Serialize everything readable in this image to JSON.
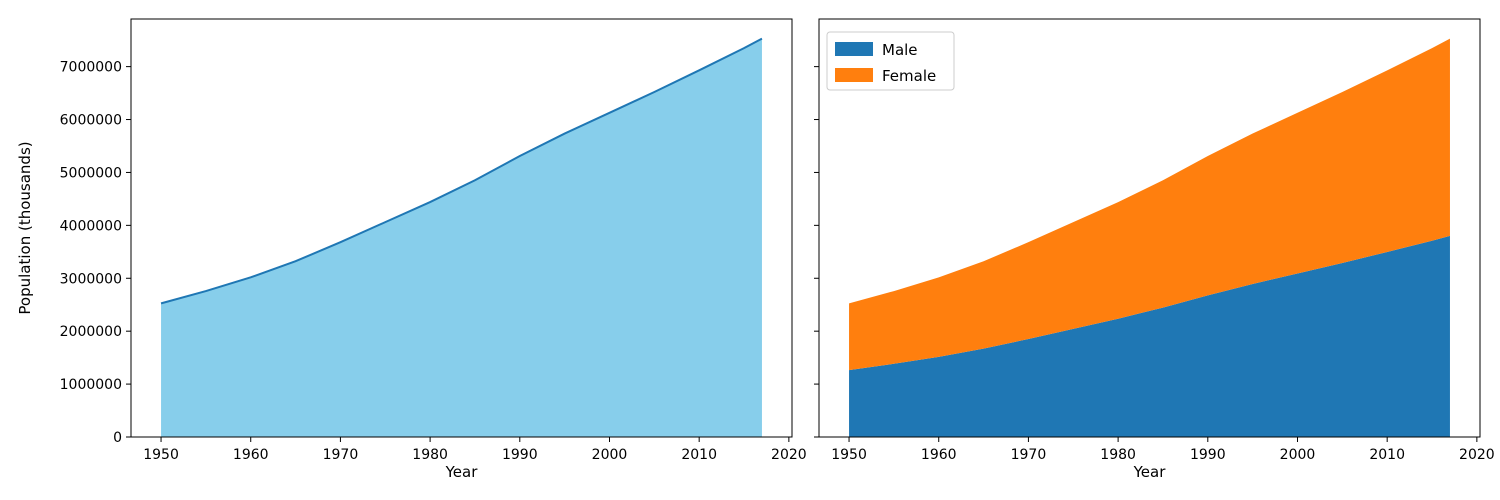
{
  "chart_data": [
    {
      "type": "area",
      "title": "",
      "xlabel": "Year",
      "ylabel": "Population (thousands)",
      "xlim": [
        1946.65,
        2020.35
      ],
      "ylim": [
        0,
        7900000
      ],
      "xticks": [
        1950,
        1960,
        1970,
        1980,
        1990,
        2000,
        2010,
        2020
      ],
      "yticks": [
        0,
        1000000,
        2000000,
        3000000,
        4000000,
        5000000,
        6000000,
        7000000
      ],
      "fill_color": "#87ceeb",
      "line_color": "#1f77b4",
      "x": [
        1950,
        1955,
        1960,
        1965,
        1970,
        1975,
        1980,
        1985,
        1990,
        1995,
        2000,
        2005,
        2010,
        2015,
        2017
      ],
      "values": [
        2525000,
        2758000,
        3018000,
        3322000,
        3682000,
        4061000,
        4440000,
        4853000,
        5310000,
        5735000,
        6127000,
        6520000,
        6930000,
        7349000,
        7530000
      ]
    },
    {
      "type": "area",
      "stacked": true,
      "title": "",
      "xlabel": "Year",
      "ylabel": "",
      "xlim": [
        1946.65,
        2020.35
      ],
      "ylim": [
        0,
        7900000
      ],
      "xticks": [
        1950,
        1960,
        1970,
        1980,
        1990,
        2000,
        2010,
        2020
      ],
      "legend_position": "top-left",
      "x": [
        1950,
        1955,
        1960,
        1965,
        1970,
        1975,
        1980,
        1985,
        1990,
        1995,
        2000,
        2005,
        2010,
        2015,
        2017
      ],
      "series": [
        {
          "name": "Male",
          "color": "#1f77b4",
          "values": [
            1265000,
            1384000,
            1515000,
            1670000,
            1852000,
            2044000,
            2236000,
            2446000,
            2677000,
            2892000,
            3091000,
            3289000,
            3497000,
            3709000,
            3801000
          ]
        },
        {
          "name": "Female",
          "color": "#ff7f0e",
          "values": [
            1260000,
            1374000,
            1503000,
            1652000,
            1830000,
            2017000,
            2204000,
            2407000,
            2633000,
            2843000,
            3036000,
            3231000,
            3433000,
            3640000,
            3729000
          ]
        }
      ]
    }
  ]
}
